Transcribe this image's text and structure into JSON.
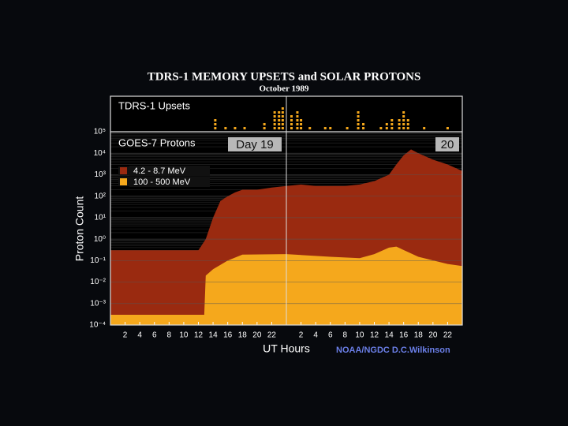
{
  "chart_data": {
    "type": "area",
    "title": "TDRS-1 MEMORY UPSETS and SOLAR PROTONS",
    "subtitle": "October 1989",
    "panel_label": "GOES-7 Protons",
    "day_labels": [
      "Day 19",
      "20"
    ],
    "y_label": "Proton Count",
    "x_label": "UT Hours",
    "credit": "NOAA/NGDC D.C.Wilkinson",
    "log_y": true,
    "grid": true,
    "xlim": [
      0,
      48
    ],
    "ylim": [
      0.0001,
      100000
    ],
    "xticks": [
      2,
      4,
      6,
      8,
      10,
      12,
      14,
      16,
      18,
      20,
      22,
      {
        "value": 26,
        "label": "2"
      },
      {
        "value": 28,
        "label": "4"
      },
      {
        "value": 30,
        "label": "6"
      },
      {
        "value": 32,
        "label": "8"
      },
      {
        "value": 34,
        "label": "10"
      },
      {
        "value": 36,
        "label": "12"
      },
      {
        "value": 38,
        "label": "14"
      },
      {
        "value": 40,
        "label": "16"
      },
      {
        "value": 42,
        "label": "18"
      },
      {
        "value": 44,
        "label": "20"
      },
      {
        "value": 46,
        "label": "22"
      }
    ],
    "yticks": [
      {
        "value": 0.0001,
        "label": "10⁻⁴"
      },
      {
        "value": 0.001,
        "label": "10⁻³"
      },
      {
        "value": 0.01,
        "label": "10⁻²"
      },
      {
        "value": 0.1,
        "label": "10⁻¹"
      },
      {
        "value": 1,
        "label": "10⁰"
      },
      {
        "value": 10,
        "label": "10¹"
      },
      {
        "value": 100,
        "label": "10²"
      },
      {
        "value": 1000,
        "label": "10³"
      },
      {
        "value": 10000,
        "label": "10⁴"
      },
      {
        "value": 100000,
        "label": "10⁵"
      }
    ],
    "series": [
      {
        "name": "4.2 - 8.7 MeV",
        "color": "#9a2a10",
        "x": [
          0,
          4,
          8,
          12,
          13,
          14,
          15,
          16,
          17,
          18,
          20,
          22,
          24,
          26,
          28,
          30,
          32,
          34,
          36,
          38,
          39,
          40,
          41,
          42,
          44,
          46,
          48
        ],
        "values": [
          0.3,
          0.3,
          0.3,
          0.3,
          1,
          10,
          60,
          100,
          150,
          200,
          200,
          250,
          300,
          350,
          300,
          300,
          300,
          350,
          500,
          1000,
          3000,
          8000,
          15000,
          10000,
          5000,
          3000,
          1500
        ]
      },
      {
        "name": "100 - 500 MeV",
        "color": "#f5a81c",
        "x": [
          0,
          4,
          8,
          12,
          12.8,
          13,
          14,
          16,
          18,
          24,
          30,
          34,
          36,
          38,
          39,
          42,
          46,
          48
        ],
        "values": [
          0.0003,
          0.0003,
          0.0003,
          0.0003,
          0.0003,
          0.02,
          0.04,
          0.1,
          0.19,
          0.2,
          0.15,
          0.13,
          0.2,
          0.4,
          0.45,
          0.15,
          0.07,
          0.056
        ]
      }
    ],
    "upsets": {
      "name": "TDRS-1 Upsets",
      "color": "#f5a81c",
      "x": [
        14.3,
        15.7,
        17,
        18.3,
        21,
        22.4,
        23,
        23.5,
        24.7,
        25.5,
        26,
        27.2,
        29.3,
        30,
        32.3,
        33.8,
        34.5,
        36.9,
        37.7,
        38.4,
        39.4,
        40,
        40.6,
        42.8,
        46
      ],
      "counts": [
        3,
        1,
        1,
        1,
        2,
        5,
        5,
        6,
        4,
        5,
        3,
        1,
        1,
        1,
        1,
        5,
        2,
        1,
        2,
        3,
        3,
        5,
        3,
        1,
        1
      ]
    }
  }
}
